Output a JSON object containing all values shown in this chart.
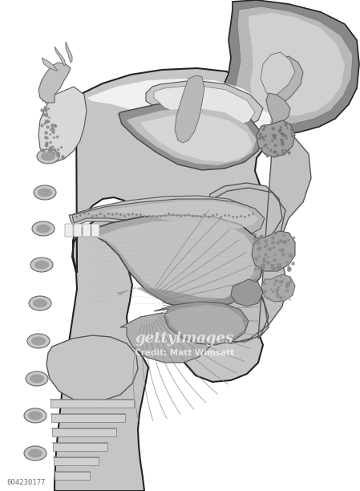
{
  "background_color": "#ffffff",
  "figsize": [
    4.49,
    6.12
  ],
  "dpi": 100,
  "watermark_text": "gettyimages",
  "watermark_credit": "Credit: Matt Wimsatt",
  "image_id": "604230177",
  "out": "#222222",
  "gl": "#e0e0e0",
  "gml": "#cccccc",
  "gm": "#aaaaaa",
  "gmd": "#888888",
  "gd": "#666666",
  "gvd": "#444444"
}
